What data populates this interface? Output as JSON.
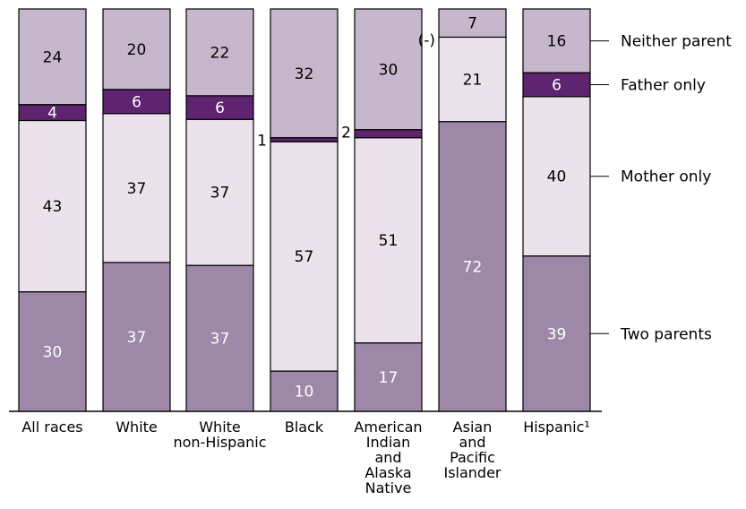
{
  "chart_data": {
    "type": "bar",
    "stacked": true,
    "categories": [
      [
        "All races"
      ],
      [
        "White"
      ],
      [
        "White",
        "non-Hispanic"
      ],
      [
        "Black"
      ],
      [
        "American",
        "Indian",
        "and",
        "Alaska",
        "Native"
      ],
      [
        "Asian",
        "and",
        "Pacific",
        "Islander"
      ],
      [
        "Hispanic¹"
      ]
    ],
    "series": [
      {
        "name": "Two parents",
        "values": [
          30,
          37,
          37,
          10,
          17,
          72,
          39
        ],
        "labels": [
          "30",
          "37",
          "37",
          "10",
          "17",
          "72",
          "39"
        ]
      },
      {
        "name": "Mother only",
        "values": [
          43,
          37,
          37,
          57,
          51,
          21,
          40
        ],
        "labels": [
          "43",
          "37",
          "37",
          "57",
          "51",
          "21",
          "40"
        ]
      },
      {
        "name": "Father only",
        "values": [
          4,
          6,
          6,
          1,
          2,
          0,
          6
        ],
        "labels": [
          "4",
          "6",
          "6",
          "1",
          "2",
          "(-)",
          "6"
        ]
      },
      {
        "name": "Neither parent",
        "values": [
          24,
          20,
          22,
          32,
          30,
          7,
          16
        ],
        "labels": [
          "24",
          "20",
          "22",
          "32",
          "30",
          "7",
          "16"
        ]
      }
    ],
    "colors": {
      "Two parents": "#9e88a8",
      "Mother only": "#ebe2ec",
      "Father only": "#5e2470",
      "Neither parent": "#c7b7cc"
    },
    "label_colors": {
      "Two parents": "#ffffff",
      "Mother only": "#000000",
      "Father only": "#ffffff",
      "Neither parent": "#000000"
    },
    "legend_position": "right",
    "ylim": [
      0,
      100
    ]
  }
}
